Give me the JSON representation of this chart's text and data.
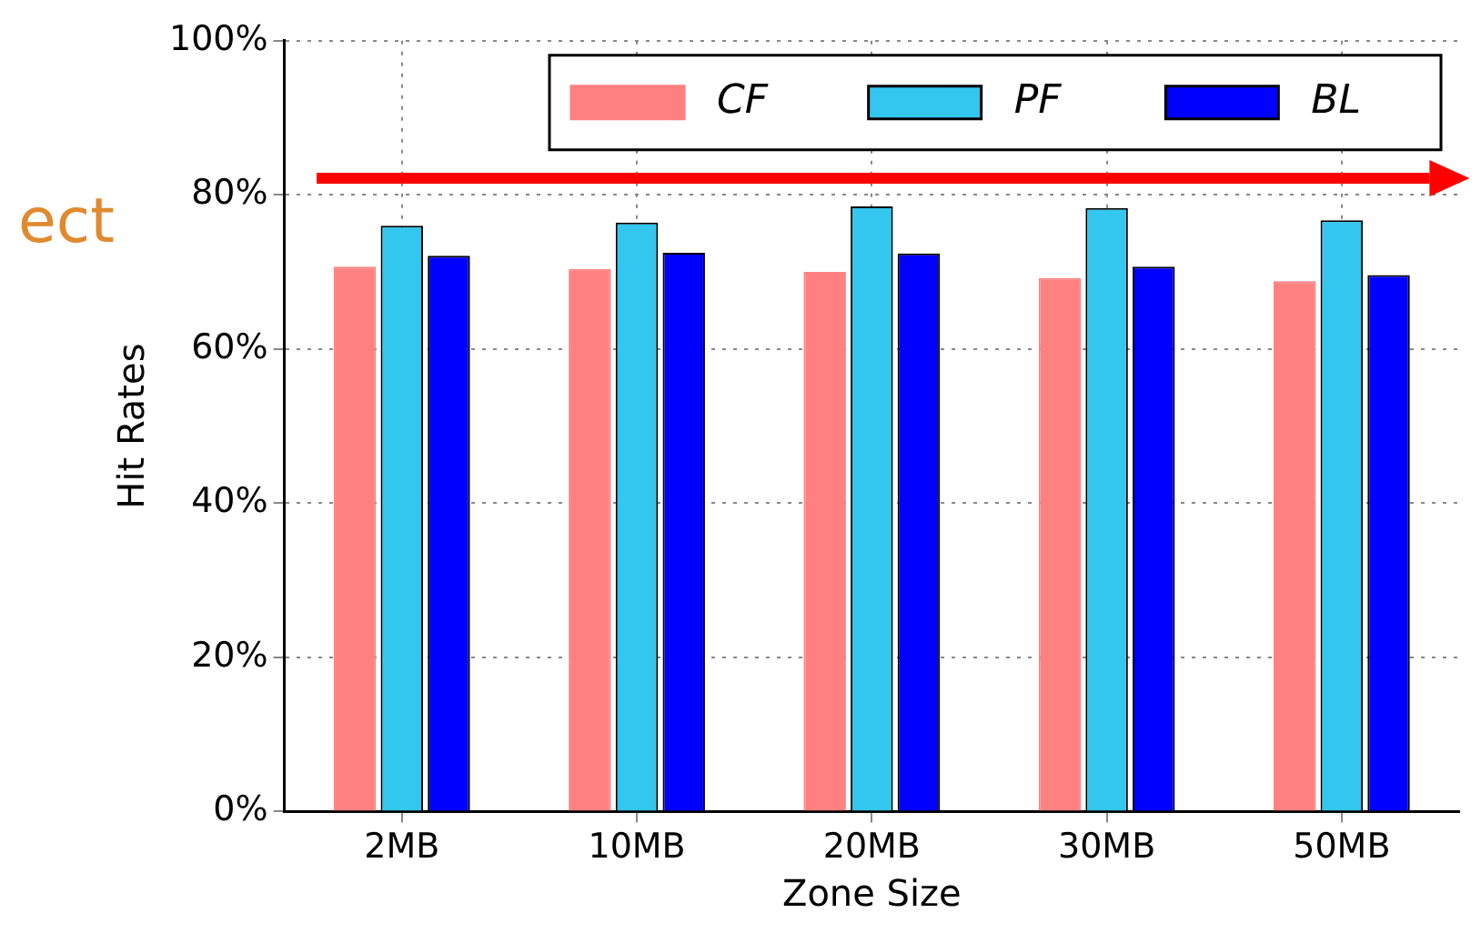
{
  "chart_data": {
    "type": "bar",
    "xlabel": "Zone Size",
    "ylabel": "Hit Rates",
    "categories": [
      "2MB",
      "10MB",
      "20MB",
      "30MB",
      "50MB"
    ],
    "series": [
      {
        "name": "CF",
        "color": "#ff8080",
        "values": [
          70.7,
          70.4,
          70.0,
          69.2,
          68.8
        ]
      },
      {
        "name": "PF",
        "color": "#33c6ee",
        "values": [
          76.0,
          76.4,
          78.5,
          78.3,
          76.7
        ]
      },
      {
        "name": "BL",
        "color": "#0000ff",
        "values": [
          72.1,
          72.5,
          72.4,
          70.7,
          69.6
        ]
      }
    ],
    "ylim": [
      0,
      100
    ],
    "yticks": [
      {
        "value": 0,
        "label": "0%"
      },
      {
        "value": 20,
        "label": "20%"
      },
      {
        "value": 40,
        "label": "40%"
      },
      {
        "value": 60,
        "label": "60%"
      },
      {
        "value": 80,
        "label": "80%"
      },
      {
        "value": 100,
        "label": "100%"
      }
    ],
    "grid": true,
    "legend": "top right",
    "annotations": [
      "ect"
    ]
  }
}
